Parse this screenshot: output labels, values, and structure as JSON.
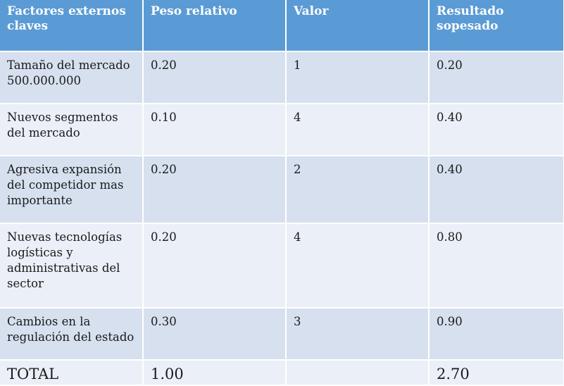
{
  "table": {
    "headers": [
      "Factores externos claves",
      "Peso relativo",
      "Valor",
      "Resultado sopesado"
    ],
    "rows": [
      {
        "factor": "Tamaño del mercado 500.000.000",
        "peso": "0.20",
        "valor": "1",
        "resultado": "0.20"
      },
      {
        "factor": "Nuevos segmentos del mercado",
        "peso": "0.10",
        "valor": "4",
        "resultado": "0.40"
      },
      {
        "factor": "Agresiva expansión del competidor mas importante",
        "peso": "0.20",
        "valor": "2",
        "resultado": "0.40"
      },
      {
        "factor": "Nuevas tecnologías logísticas y administrativas del sector",
        "peso": "0.20",
        "valor": "4",
        "resultado": "0.80"
      },
      {
        "factor": "Cambios en la regulación del estado",
        "peso": "0.30",
        "valor": "3",
        "resultado": "0.90"
      }
    ],
    "total": {
      "label": "TOTAL",
      "peso": "1.00",
      "valor": "",
      "resultado": "2.70"
    }
  },
  "colors": {
    "header_bg": "#5b9bd5",
    "row_band_dark": "#d6e0ef",
    "row_band_light": "#ebeff7"
  }
}
